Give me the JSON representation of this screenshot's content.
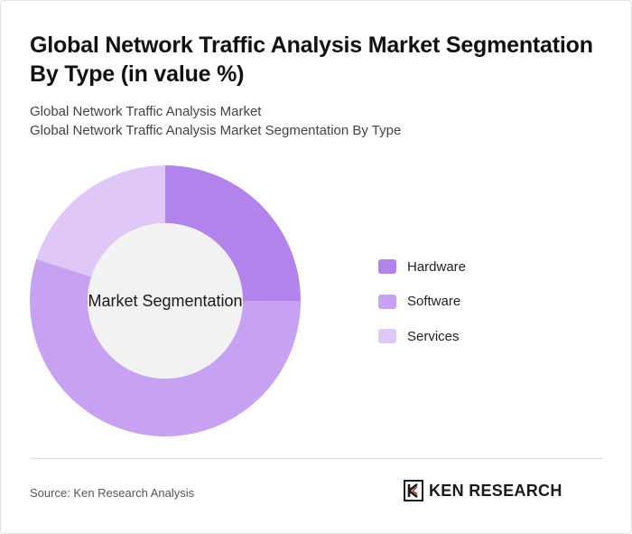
{
  "title": "Global Network Traffic Analysis Market Segmentation By Type (in value %)",
  "subtitle_1": "Global Network Traffic Analysis Market",
  "subtitle_2": "Global Network Traffic Analysis Market Segmentation By Type",
  "center_label": "Market Segmentation",
  "source": "Source: Ken Research Analysis",
  "logo_text": "KEN RESEARCH",
  "colors": {
    "hardware": "#b383ec",
    "software": "#c7a2f2",
    "services": "#dfc8f8",
    "hole": "#f2f2f2"
  },
  "chart_data": {
    "type": "pie",
    "donut": true,
    "title": "Global Network Traffic Analysis Market Segmentation By Type (in value %)",
    "center_label": "Market Segmentation",
    "legend_position": "right",
    "categories": [
      "Hardware",
      "Software",
      "Services"
    ],
    "values": [
      25,
      55,
      20
    ],
    "unit": "%"
  }
}
